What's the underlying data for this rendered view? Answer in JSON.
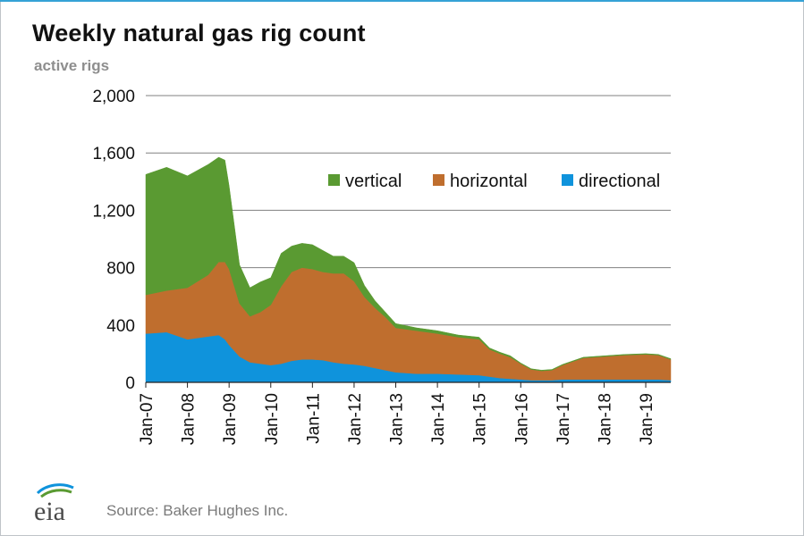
{
  "header": {
    "title": "Weekly natural gas rig count",
    "unit_label": "active rigs"
  },
  "footer": {
    "source": "Source: Baker Hughes Inc.",
    "logo_text": "eia"
  },
  "colors": {
    "vertical": "#5a9a32",
    "horizontal": "#bf6e2e",
    "directional": "#0f93dc",
    "grid": "#808080",
    "axis": "#222222"
  },
  "chart_data": {
    "type": "area",
    "stacked": true,
    "title": "Weekly natural gas rig count",
    "ylabel": "active rigs",
    "xlabel": "",
    "ylim": [
      0,
      2000
    ],
    "xlim": [
      2007.0,
      2019.6
    ],
    "y_ticks": [
      0,
      400,
      800,
      1200,
      1600,
      2000
    ],
    "y_tick_labels": [
      "0",
      "400",
      "800",
      "1,200",
      "1,600",
      "2,000"
    ],
    "x_ticks": [
      2007,
      2008,
      2009,
      2010,
      2011,
      2012,
      2013,
      2014,
      2015,
      2016,
      2017,
      2018,
      2019
    ],
    "x_tick_labels": [
      "Jan-07",
      "Jan-08",
      "Jan-09",
      "Jan-10",
      "Jan-11",
      "Jan-12",
      "Jan-13",
      "Jan-14",
      "Jan-15",
      "Jan-16",
      "Jan-17",
      "Jan-18",
      "Jan-19"
    ],
    "grid": true,
    "legend_position": "top-right",
    "x": [
      2007.0,
      2007.5,
      2008.0,
      2008.5,
      2008.75,
      2008.9,
      2009.0,
      2009.25,
      2009.5,
      2009.75,
      2010.0,
      2010.25,
      2010.5,
      2010.75,
      2011.0,
      2011.25,
      2011.5,
      2011.75,
      2012.0,
      2012.25,
      2012.5,
      2012.75,
      2013.0,
      2013.5,
      2014.0,
      2014.5,
      2015.0,
      2015.25,
      2015.5,
      2015.75,
      2016.0,
      2016.25,
      2016.5,
      2016.75,
      2017.0,
      2017.5,
      2018.0,
      2018.5,
      2019.0,
      2019.3,
      2019.6
    ],
    "series": [
      {
        "name": "directional",
        "values": [
          340,
          350,
          300,
          320,
          330,
          300,
          260,
          180,
          140,
          130,
          120,
          130,
          150,
          160,
          160,
          155,
          140,
          130,
          125,
          115,
          100,
          85,
          70,
          60,
          60,
          55,
          50,
          40,
          30,
          25,
          20,
          15,
          15,
          15,
          20,
          20,
          20,
          20,
          20,
          20,
          15
        ]
      },
      {
        "name": "horizontal",
        "values": [
          270,
          290,
          360,
          430,
          510,
          540,
          530,
          370,
          320,
          360,
          420,
          540,
          620,
          640,
          630,
          615,
          620,
          630,
          580,
          480,
          420,
          370,
          310,
          300,
          280,
          260,
          250,
          190,
          170,
          150,
          110,
          75,
          65,
          70,
          100,
          150,
          160,
          170,
          175,
          170,
          145
        ]
      },
      {
        "name": "vertical",
        "values": [
          840,
          860,
          780,
          770,
          730,
          710,
          580,
          270,
          200,
          210,
          190,
          230,
          180,
          170,
          170,
          150,
          120,
          120,
          130,
          80,
          50,
          35,
          30,
          20,
          20,
          15,
          15,
          10,
          10,
          10,
          5,
          5,
          5,
          5,
          5,
          5,
          5,
          5,
          5,
          5,
          5
        ]
      }
    ],
    "legend": [
      "vertical",
      "horizontal",
      "directional"
    ]
  }
}
